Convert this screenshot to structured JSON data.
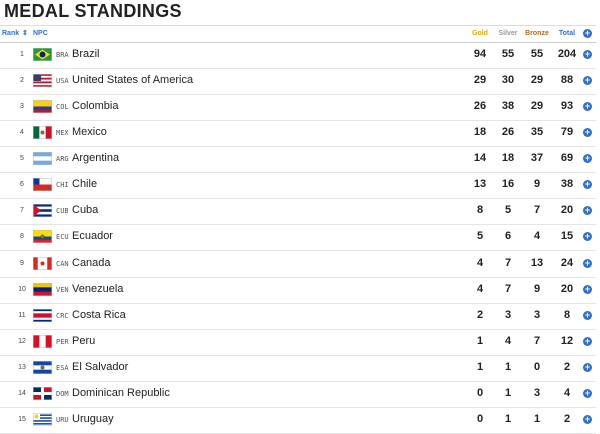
{
  "header": {
    "title": "MEDAL STANDINGS"
  },
  "table": {
    "columns": [
      "Rank",
      "NPC",
      "Gold",
      "Silver",
      "Bronze",
      "Total"
    ],
    "rows": [
      [
        "1",
        "BRA",
        "Brazil",
        "94",
        "55",
        "55",
        "204"
      ],
      [
        "2",
        "USA",
        "United States of America",
        "29",
        "30",
        "29",
        "88"
      ],
      [
        "3",
        "COL",
        "Colombia",
        "26",
        "38",
        "29",
        "93"
      ],
      [
        "4",
        "MEX",
        "Mexico",
        "18",
        "26",
        "35",
        "79"
      ],
      [
        "5",
        "ARG",
        "Argentina",
        "14",
        "18",
        "37",
        "69"
      ],
      [
        "6",
        "CHI",
        "Chile",
        "13",
        "16",
        "9",
        "38"
      ],
      [
        "7",
        "CUB",
        "Cuba",
        "8",
        "5",
        "7",
        "20"
      ],
      [
        "8",
        "ECU",
        "Ecuador",
        "5",
        "6",
        "4",
        "15"
      ],
      [
        "9",
        "CAN",
        "Canada",
        "4",
        "7",
        "13",
        "24"
      ],
      [
        "10",
        "VEN",
        "Venezuela",
        "4",
        "7",
        "9",
        "20"
      ],
      [
        "11",
        "CRC",
        "Costa Rica",
        "2",
        "3",
        "3",
        "8"
      ],
      [
        "12",
        "PER",
        "Peru",
        "1",
        "4",
        "7",
        "12"
      ],
      [
        "13",
        "ESA",
        "El Salvador",
        "1",
        "1",
        "0",
        "2"
      ],
      [
        "14",
        "DOM",
        "Dominican Republic",
        "0",
        "1",
        "3",
        "4"
      ],
      [
        "15",
        "URU",
        "Uruguay",
        "0",
        "1",
        "1",
        "2"
      ]
    ]
  }
}
